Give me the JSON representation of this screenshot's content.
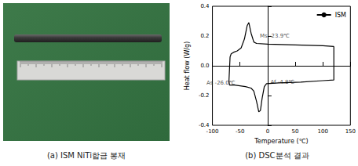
{
  "chart_data": {
    "type": "line",
    "xlabel": "Temperature (℃)",
    "ylabel": "Heat flow (W/g)",
    "xlim": [
      -100,
      150
    ],
    "xticks": [
      -100,
      -50,
      0,
      50,
      100,
      150
    ],
    "ylim": [
      -0.4,
      0.4
    ],
    "yticks": [
      -0.4,
      -0.2,
      {
        "value": 0,
        "label": "0.0"
      },
      0.2,
      0.4
    ],
    "grid": false,
    "legend": "upper right",
    "series": [
      {
        "name": "ISM",
        "color": "#000000",
        "x": [
          120,
          100,
          50,
          0,
          -20,
          -25,
          -30,
          -34,
          -37,
          -42,
          -48,
          -55,
          -62,
          -66,
          -68,
          -70,
          -69,
          -60,
          -40,
          -30,
          -25,
          -20,
          -16,
          -13,
          -10,
          -6,
          -2,
          20,
          60,
          100,
          120,
          120
        ],
        "values": [
          0.13,
          0.135,
          0.14,
          0.145,
          0.15,
          0.16,
          0.22,
          0.29,
          0.27,
          0.18,
          0.12,
          0.1,
          0.09,
          0.08,
          0.06,
          -0.1,
          -0.13,
          -0.13,
          -0.14,
          -0.15,
          -0.17,
          -0.24,
          -0.31,
          -0.3,
          -0.22,
          -0.14,
          -0.12,
          -0.115,
          -0.11,
          -0.1,
          -0.095,
          0.13
        ]
      }
    ],
    "annotations": [
      {
        "text": "Ms -23.9℃",
        "x": -23.9,
        "y": 0.16
      },
      {
        "text": "As -26.0℃",
        "x": -26.0,
        "y": -0.16
      },
      {
        "text": "Af -4.8℃",
        "x": -4.8,
        "y": -0.13
      }
    ]
  },
  "captions": [
    "(a) ISM NiTi합금 봉재",
    "(b) DSC분석 결과"
  ]
}
